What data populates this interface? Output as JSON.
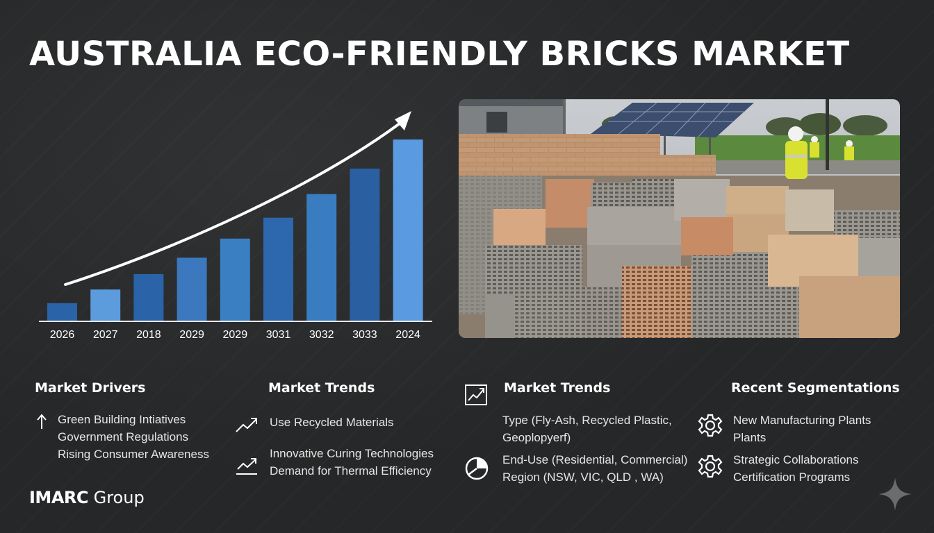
{
  "title": "AUSTRALIA ECO-FRIENDLY BRICKS MARKET",
  "chart_data": {
    "type": "bar",
    "categories": [
      "2026",
      "2027",
      "2018",
      "2029",
      "2029",
      "3031",
      "3032",
      "3033",
      "2024"
    ],
    "values": [
      10,
      17.5,
      26,
      35,
      45.5,
      57,
      70,
      84,
      100
    ],
    "ylim": [
      0,
      100
    ],
    "grid": false,
    "trend_arrow": true,
    "colors": [
      "#2a63a8",
      "#5c9bdc",
      "#2a63a8",
      "#3b78bd",
      "#3b7fc3",
      "#2d67ad",
      "#3a7cc0",
      "#2a5fa2",
      "#5a9ae0"
    ]
  },
  "photo": {
    "icon": "brick-yard-photo"
  },
  "sections": [
    {
      "title": "Market Drivers",
      "icon": "arrow-up-icon",
      "items": [
        "Green Building Intiatives",
        "Government Regulations",
        "Rising Consumer Awareness"
      ]
    },
    {
      "title": "Market Trends",
      "items": [
        {
          "icon": "trend-line-icon",
          "text": "Use Recycled Materials"
        },
        {
          "icon": "trend-chart-icon",
          "text": "Innovative Curing Technologies",
          "text2": "Demand for Thermal Efficiency"
        }
      ]
    },
    {
      "title": "Market Trends",
      "icon": "chart-box-icon",
      "items": [
        {
          "text": "Type (Fly-Ash, Recycled Plastic,",
          "text2": "Geoplopyerf)"
        },
        {
          "icon": "pie-chart-icon",
          "text": "End-Use (Residential, Commercial)",
          "text2": "Region (NSW, VIC, QLD , WA)"
        }
      ]
    },
    {
      "title": "Recent Segmentations",
      "items": [
        {
          "icon": "gear-icon",
          "text": "New Manufacturing Plants",
          "text2": "Plants"
        },
        {
          "icon": "gear-icon",
          "text": "Strategic Collaborations",
          "text2": "Certification Programs"
        }
      ]
    }
  ],
  "logo": {
    "bold": "IMARC",
    "regular": " Group"
  },
  "accent": "#5a9ae0"
}
